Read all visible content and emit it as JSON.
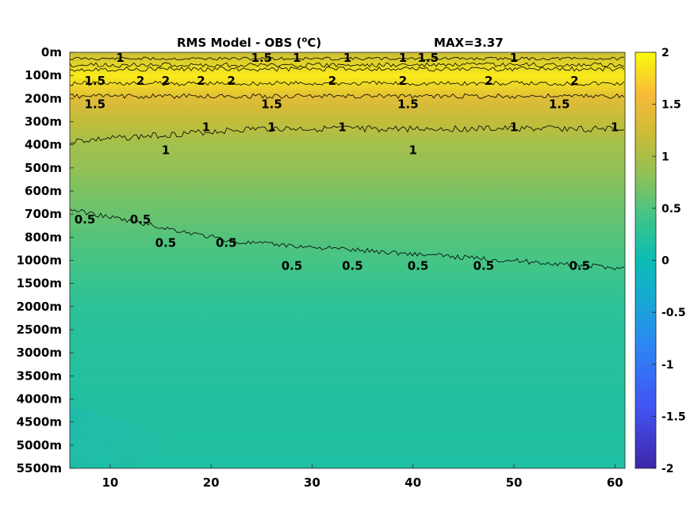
{
  "chart_data": {
    "type": "heatmap",
    "title": "RMS Model - OBS (",
    "title_sup": "o",
    "title_unit": "C)",
    "max_label": "MAX=3.37",
    "xlabel": "",
    "ylabel": "",
    "xlim": [
      6,
      61
    ],
    "x_ticks": [
      10,
      20,
      30,
      40,
      50,
      60
    ],
    "y_ticks": [
      "0m",
      "100m",
      "200m",
      "300m",
      "400m",
      "500m",
      "600m",
      "700m",
      "800m",
      "1000m",
      "1500m",
      "2000m",
      "2500m",
      "3000m",
      "3500m",
      "4000m",
      "4500m",
      "5000m",
      "5500m"
    ],
    "colorbar": {
      "range": [
        -2,
        2
      ],
      "ticks": [
        2,
        1.5,
        1,
        0.5,
        0,
        -0.5,
        -1,
        -1.5,
        -2
      ],
      "tick_labels": [
        "2",
        "1.5",
        "1",
        "0.5",
        "0",
        "-0.5",
        "-1",
        "-1.5",
        "-2"
      ]
    },
    "contour_levels": [
      0.5,
      1,
      1.5,
      2
    ],
    "profile": [
      {
        "depth": "0m",
        "value": 1.2
      },
      {
        "depth": "100m",
        "value": 1.9
      },
      {
        "depth": "200m",
        "value": 1.4
      },
      {
        "depth": "300m",
        "value": 1.15
      },
      {
        "depth": "400m",
        "value": 0.95
      },
      {
        "depth": "500m",
        "value": 0.85
      },
      {
        "depth": "600m",
        "value": 0.72
      },
      {
        "depth": "700m",
        "value": 0.62
      },
      {
        "depth": "800m",
        "value": 0.52
      },
      {
        "depth": "1000m",
        "value": 0.45
      },
      {
        "depth": "1500m",
        "value": 0.35
      },
      {
        "depth": "2000m",
        "value": 0.28
      },
      {
        "depth": "2500m",
        "value": 0.24
      },
      {
        "depth": "3000m",
        "value": 0.22
      },
      {
        "depth": "3500m",
        "value": 0.2
      },
      {
        "depth": "4000m",
        "value": 0.19
      },
      {
        "depth": "4500m",
        "value": 0.18
      },
      {
        "depth": "5000m",
        "value": 0.17
      },
      {
        "depth": "5500m",
        "value": 0.16
      }
    ],
    "contour_labels": [
      {
        "text": "1",
        "x": 11,
        "y": "0m"
      },
      {
        "text": "1.5",
        "x": 8.5,
        "y": "100m"
      },
      {
        "text": "2",
        "x": 13,
        "y": "100m"
      },
      {
        "text": "2",
        "x": 15.5,
        "y": "100m"
      },
      {
        "text": "2",
        "x": 19,
        "y": "100m"
      },
      {
        "text": "2",
        "x": 22,
        "y": "100m"
      },
      {
        "text": "1.5",
        "x": 25,
        "y": "0m"
      },
      {
        "text": "1",
        "x": 28.5,
        "y": "0m"
      },
      {
        "text": "1",
        "x": 33.5,
        "y": "0m"
      },
      {
        "text": "2",
        "x": 32,
        "y": "100m"
      },
      {
        "text": "1",
        "x": 39,
        "y": "0m"
      },
      {
        "text": "1.5",
        "x": 41.5,
        "y": "0m"
      },
      {
        "text": "2",
        "x": 39,
        "y": "100m"
      },
      {
        "text": "2",
        "x": 47.5,
        "y": "100m"
      },
      {
        "text": "1",
        "x": 50,
        "y": "0m"
      },
      {
        "text": "2",
        "x": 56,
        "y": "100m"
      },
      {
        "text": "1.5",
        "x": 8.5,
        "y": "200m"
      },
      {
        "text": "1.5",
        "x": 26,
        "y": "200m"
      },
      {
        "text": "1.5",
        "x": 39.5,
        "y": "200m"
      },
      {
        "text": "1.5",
        "x": 54.5,
        "y": "200m"
      },
      {
        "text": "1",
        "x": 15.5,
        "y": "400m"
      },
      {
        "text": "1",
        "x": 19.5,
        "y": "300m"
      },
      {
        "text": "1",
        "x": 26,
        "y": "300m"
      },
      {
        "text": "1",
        "x": 33,
        "y": "300m"
      },
      {
        "text": "1",
        "x": 40,
        "y": "400m"
      },
      {
        "text": "1",
        "x": 50,
        "y": "300m"
      },
      {
        "text": "1",
        "x": 60,
        "y": "300m"
      },
      {
        "text": "0.5",
        "x": 7.5,
        "y": "700m"
      },
      {
        "text": "0.5",
        "x": 13,
        "y": "700m"
      },
      {
        "text": "0.5",
        "x": 15.5,
        "y": "800m"
      },
      {
        "text": "0.5",
        "x": 21.5,
        "y": "800m"
      },
      {
        "text": "0.5",
        "x": 28,
        "y": "1000m"
      },
      {
        "text": "0.5",
        "x": 34,
        "y": "1000m"
      },
      {
        "text": "0.5",
        "x": 40.5,
        "y": "1000m"
      },
      {
        "text": "0.5",
        "x": 47,
        "y": "1000m"
      },
      {
        "text": "0.5",
        "x": 56.5,
        "y": "1000m"
      }
    ]
  }
}
